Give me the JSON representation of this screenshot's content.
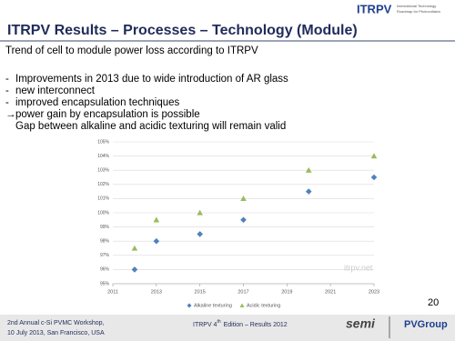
{
  "header": {
    "logo": "ITRPV",
    "logo_tagline": [
      "International Technology",
      "Roadmap for Photovoltaics"
    ],
    "title": "ITRPV Results – Processes – Technology (Module)"
  },
  "subtitle": "Trend of cell to module power loss according to ITRPV",
  "bullets": [
    {
      "marker": "-",
      "text": "Improvements in 2013 due to wide introduction of AR glass"
    },
    {
      "marker": "-",
      "text": "new interconnect"
    },
    {
      "marker": "-",
      "text": "improved encapsulation techniques"
    },
    {
      "marker": "→",
      "text": "power gain by encapsulation is possible"
    },
    {
      "marker": "",
      "text": "Gap between alkaline and acidic texturing will remain valid"
    }
  ],
  "chart_data": {
    "type": "scatter",
    "x": [
      2012,
      2013,
      2015,
      2017,
      2020,
      2023
    ],
    "series": [
      {
        "name": "Alkaline texturing",
        "color": "#4f81bd",
        "marker": "diamond",
        "values": [
          96,
          98,
          98.5,
          99.5,
          101.5,
          102.5
        ]
      },
      {
        "name": "Acidic texturing",
        "color": "#9bbb59",
        "marker": "triangle",
        "values": [
          97.5,
          99.5,
          100,
          101,
          103,
          104
        ]
      }
    ],
    "xlim": [
      2011,
      2023
    ],
    "xticks": [
      2011,
      2013,
      2015,
      2017,
      2019,
      2021,
      2023
    ],
    "ylim": [
      95,
      105
    ],
    "yticks": [
      {
        "value": 95,
        "label": "95%"
      },
      {
        "value": 96,
        "label": "96%"
      },
      {
        "value": 97,
        "label": "97%"
      },
      {
        "value": 98,
        "label": "98%"
      },
      {
        "value": 99,
        "label": "99%"
      },
      {
        "value": 100,
        "label": "100%"
      },
      {
        "value": 101,
        "label": "101%"
      },
      {
        "value": 102,
        "label": "102%"
      },
      {
        "value": 103,
        "label": "103%"
      },
      {
        "value": 104,
        "label": "104%"
      },
      {
        "value": 105,
        "label": "105%"
      }
    ],
    "grid": true,
    "legend": "bottom",
    "watermark": "itrpv.net"
  },
  "page_number": "20",
  "footer": {
    "left": [
      "2nd Annual c-Si PVMC Workshop,",
      "10 July 2013, San Francisco, USA"
    ],
    "center": [
      "ITRPV 4",
      "th",
      "Edition – Results 2012"
    ],
    "logos": [
      "semi",
      "PVGroup"
    ]
  }
}
